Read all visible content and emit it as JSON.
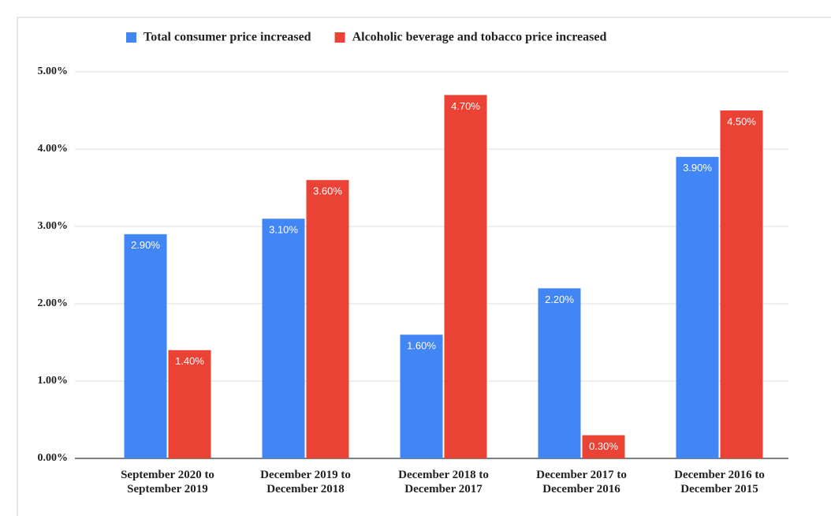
{
  "chart_data": {
    "type": "bar",
    "categories": [
      "September 2020 to September 2019",
      "December 2019 to December 2018",
      "December 2018 to December 2017",
      "December 2017 to December 2016",
      "December 2016 to December 2015"
    ],
    "series": [
      {
        "name": "Total consumer price increased",
        "color": "#4285f4",
        "values": [
          2.9,
          3.1,
          1.6,
          2.2,
          3.9
        ],
        "value_labels": [
          "2.90%",
          "3.10%",
          "1.60%",
          "2.20%",
          "3.90%"
        ]
      },
      {
        "name": "Alcoholic beverage and tobacco price increased",
        "color": "#ea4335",
        "values": [
          1.4,
          3.6,
          4.7,
          0.3,
          4.5
        ],
        "value_labels": [
          "1.40%",
          "3.60%",
          "4.70%",
          "0.30%",
          "4.50%"
        ]
      }
    ],
    "ylim": [
      0,
      5
    ],
    "yticks": [
      {
        "value": 0,
        "label": "0.00%"
      },
      {
        "value": 1,
        "label": "1.00%"
      },
      {
        "value": 2,
        "label": "2.00%"
      },
      {
        "value": 3,
        "label": "3.00%"
      },
      {
        "value": 4,
        "label": "4.00%"
      },
      {
        "value": 5,
        "label": "5.00%"
      }
    ],
    "grid": true,
    "legend": "top"
  }
}
